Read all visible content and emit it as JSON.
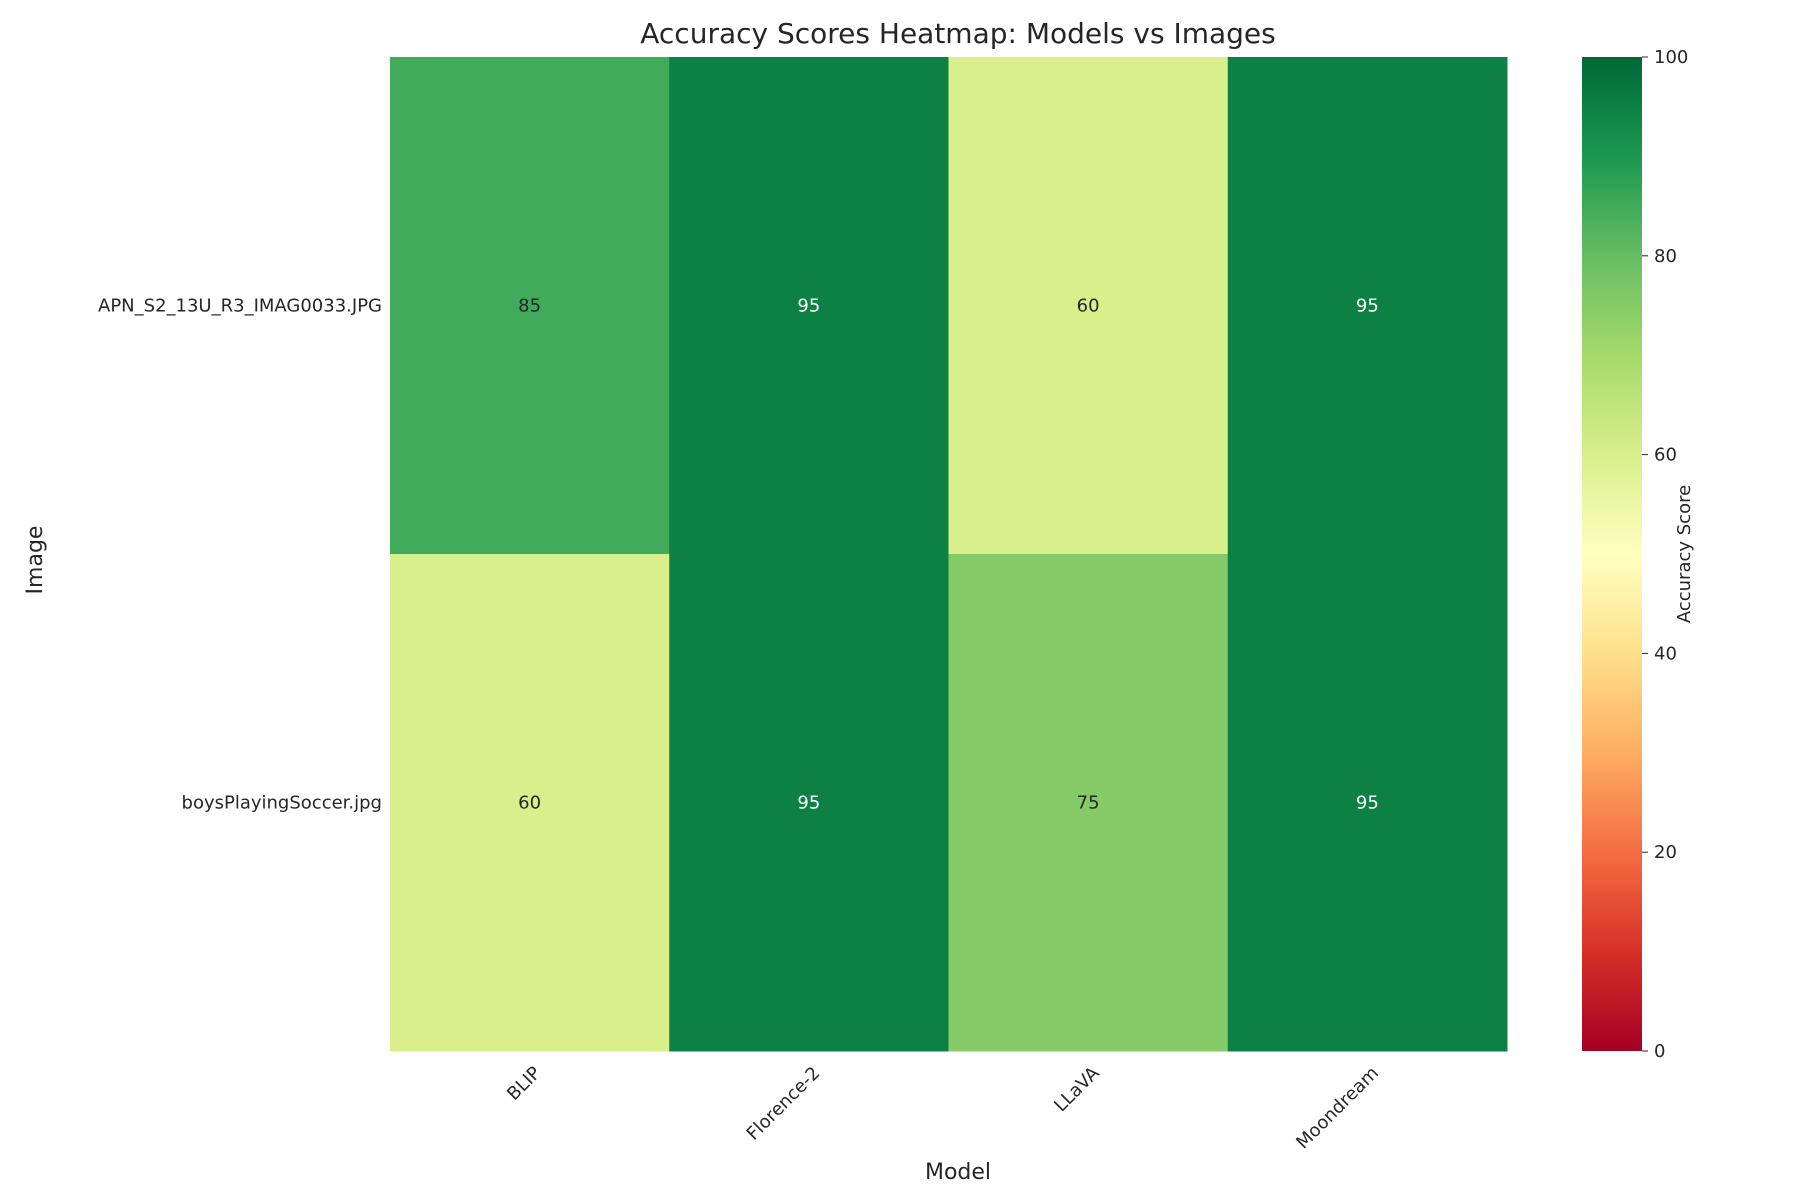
{
  "chart_data": {
    "type": "heatmap",
    "title": "Accuracy Scores Heatmap: Models vs Images",
    "xlabel": "Model",
    "ylabel": "Image",
    "x_categories": [
      "BLIP",
      "Florence-2",
      "LLaVA",
      "Moondream"
    ],
    "y_categories": [
      "APN_S2_13U_R3_IMAG0033.JPG",
      "boysPlayingSoccer.jpg"
    ],
    "values": [
      [
        85,
        95,
        60,
        95
      ],
      [
        60,
        95,
        75,
        95
      ]
    ],
    "annotations": true,
    "colorbar": {
      "label": "Accuracy Score",
      "range": [
        0,
        100
      ],
      "ticks": [
        "0",
        "20",
        "40",
        "60",
        "80",
        "100"
      ],
      "colormap": "RdYlGn",
      "stops": [
        "#a50026",
        "#d73027",
        "#f46d43",
        "#fdae61",
        "#fee08b",
        "#ffffbf",
        "#d9ef8b",
        "#a6d96a",
        "#66bd63",
        "#1a9850",
        "#006837"
      ]
    },
    "grid": false
  }
}
